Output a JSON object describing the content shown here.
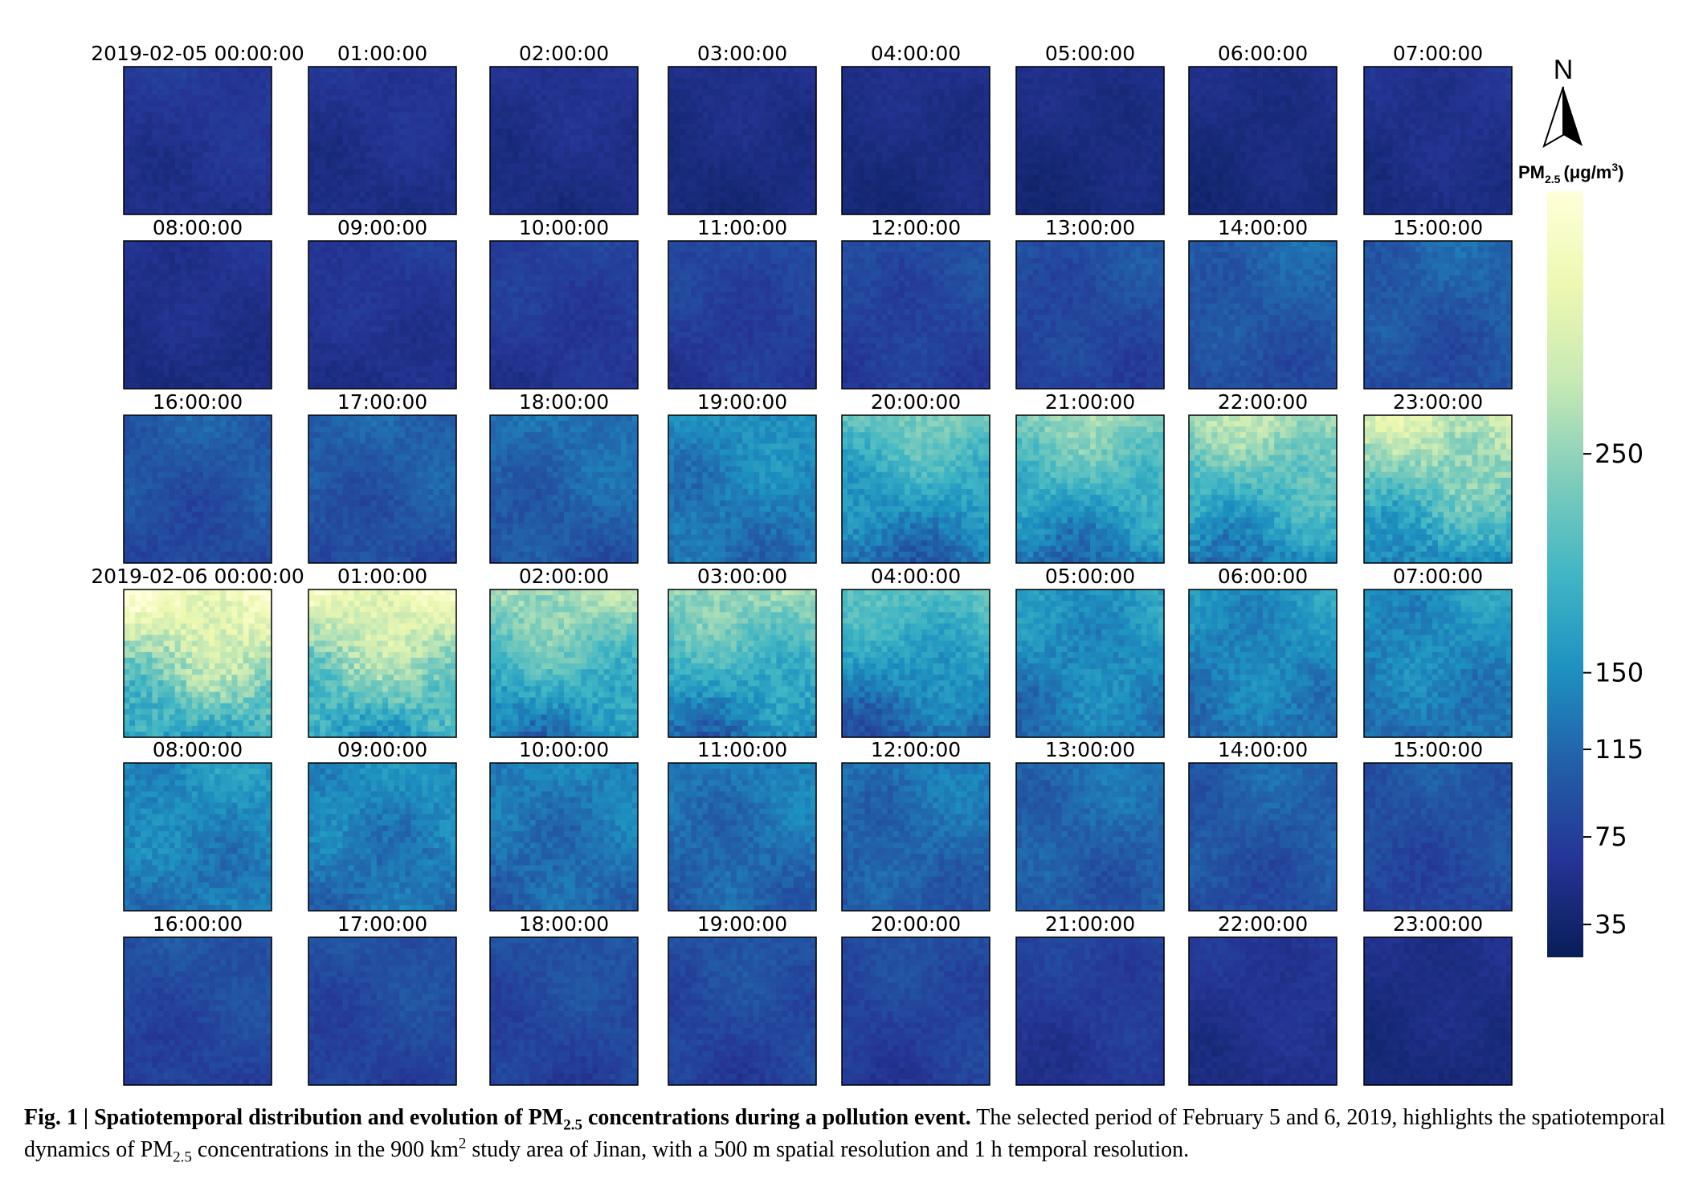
{
  "chart_data": {
    "type": "heatmap",
    "grid": {
      "rows": 6,
      "cols": 8
    },
    "panel_titles": [
      "2019-02-05 00:00:00",
      "01:00:00",
      "02:00:00",
      "03:00:00",
      "04:00:00",
      "05:00:00",
      "06:00:00",
      "07:00:00",
      "08:00:00",
      "09:00:00",
      "10:00:00",
      "11:00:00",
      "12:00:00",
      "13:00:00",
      "14:00:00",
      "15:00:00",
      "16:00:00",
      "17:00:00",
      "18:00:00",
      "19:00:00",
      "20:00:00",
      "21:00:00",
      "22:00:00",
      "23:00:00",
      "2019-02-06 00:00:00",
      "01:00:00",
      "02:00:00",
      "03:00:00",
      "04:00:00",
      "05:00:00",
      "06:00:00",
      "07:00:00",
      "08:00:00",
      "09:00:00",
      "10:00:00",
      "11:00:00",
      "12:00:00",
      "13:00:00",
      "14:00:00",
      "15:00:00",
      "16:00:00",
      "17:00:00",
      "18:00:00",
      "19:00:00",
      "20:00:00",
      "21:00:00",
      "22:00:00",
      "23:00:00"
    ],
    "panel_mean_pm25": [
      62,
      58,
      55,
      50,
      50,
      48,
      48,
      55,
      55,
      62,
      70,
      75,
      80,
      85,
      100,
      100,
      95,
      100,
      110,
      135,
      170,
      185,
      200,
      220,
      260,
      250,
      200,
      190,
      160,
      145,
      140,
      140,
      140,
      135,
      125,
      120,
      115,
      110,
      100,
      90,
      85,
      85,
      85,
      85,
      80,
      70,
      60,
      50
    ],
    "colorbar": {
      "label_prefix": "PM",
      "label_sub": "2.5",
      "label_unit": "(μg/m",
      "label_sup": "3",
      "label_close": ")",
      "ticks": [
        35,
        75,
        115,
        150,
        250
      ],
      "range": [
        20,
        370
      ],
      "colormap": "YlGnBu"
    },
    "north_arrow": "N"
  },
  "caption": {
    "fig_label": "Fig. 1 | ",
    "bold_1": "Spatiotemporal distribution and evolution of PM",
    "bold_sub": "2.5",
    "bold_2": " concentrations during a pollution event.",
    "text_1": " The selected period of February 5 and 6, 2019, highlights the spatiotemporal dynamics of PM",
    "text_sub": "2.5",
    "text_2": " concentrations in the 900 km",
    "text_sup": "2",
    "text_3": " study area of Jinan, with a 500 m spatial resolution and 1 h temporal resolution."
  }
}
